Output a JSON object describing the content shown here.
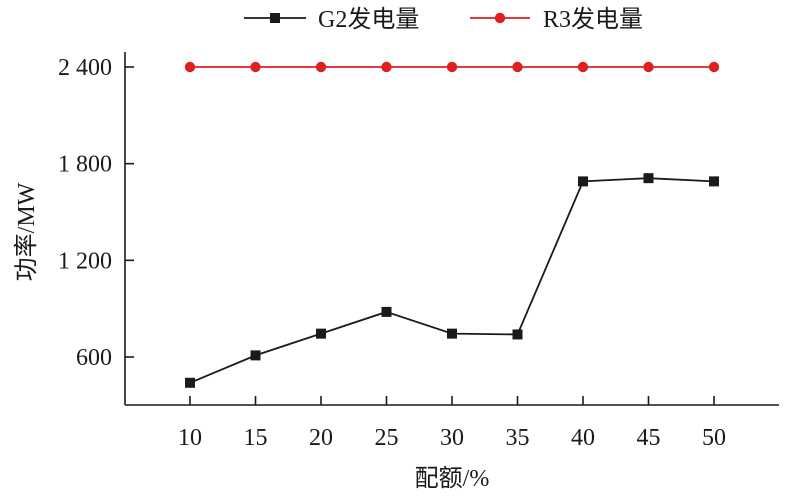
{
  "chart_data": {
    "type": "line",
    "x": [
      10,
      15,
      20,
      25,
      30,
      35,
      40,
      45,
      50
    ],
    "x_tick_labels": [
      "10",
      "15",
      "20",
      "25",
      "30",
      "35",
      "40",
      "45",
      "50"
    ],
    "xlabel": "配额/%",
    "ylabel": "功率/MW",
    "ylim": [
      360,
      2450
    ],
    "y_ticks": [
      600,
      1200,
      1800,
      2400
    ],
    "y_tick_labels": [
      "600",
      "1 200",
      "1 800",
      "2 400"
    ],
    "legend_position": "top",
    "grid": false,
    "series": [
      {
        "name": "G2发电量",
        "color": "#1a1a1a",
        "marker": "square",
        "values": [
          440,
          610,
          745,
          880,
          745,
          740,
          1690,
          1710,
          1690
        ]
      },
      {
        "name": "R3发电量",
        "color": "#e02020",
        "marker": "circle",
        "values": [
          2400,
          2400,
          2400,
          2400,
          2400,
          2400,
          2400,
          2400,
          2400
        ]
      }
    ]
  }
}
